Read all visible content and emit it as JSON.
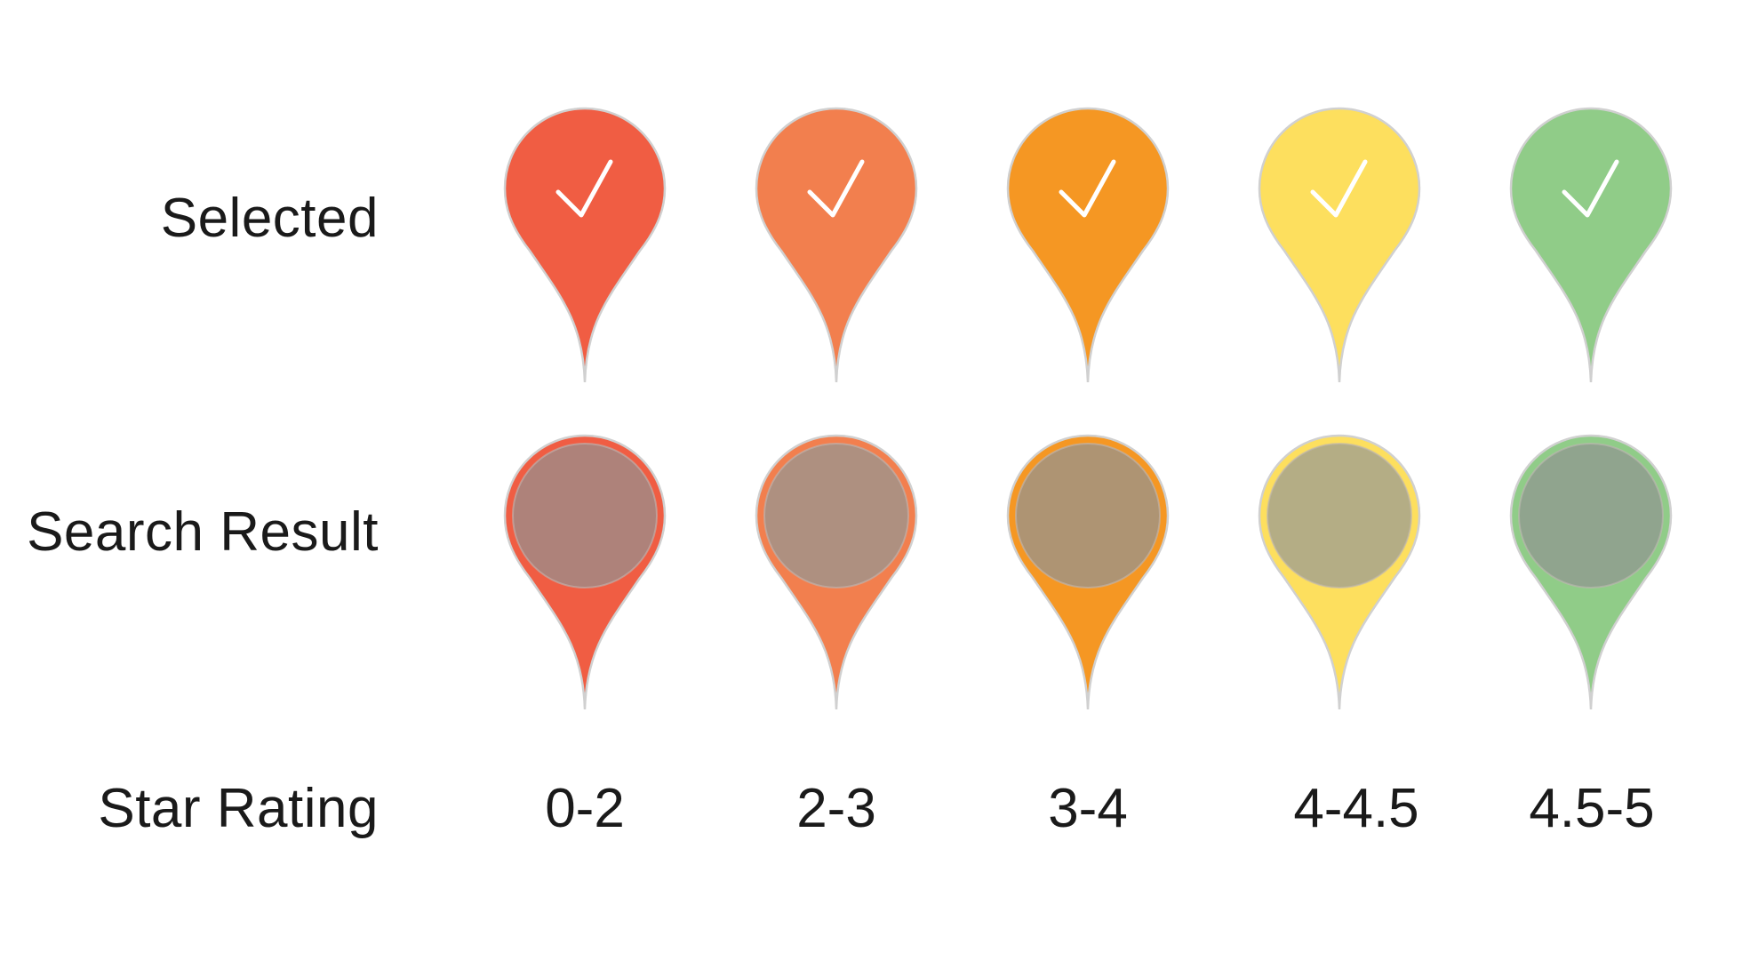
{
  "rows": {
    "selected": "Selected",
    "search_result": "Search Result",
    "star_rating": "Star Rating"
  },
  "tiers": [
    {
      "range": "0-2",
      "color": "#F05D43",
      "inner_color": "#AE827A"
    },
    {
      "range": "2-3",
      "color": "#F27F4E",
      "inner_color": "#AE9080"
    },
    {
      "range": "3-4",
      "color": "#F59723",
      "inner_color": "#AE9473"
    },
    {
      "range": "4-4.5",
      "color": "#FDDF5E",
      "inner_color": "#B4AD85"
    },
    {
      "range": "4.5-5",
      "color": "#90CC88",
      "inner_color": "#90A48E"
    }
  ],
  "pin_outline_color": "#D0D0D0",
  "check_color": "#FFFFFF",
  "icons": {
    "selected_marker": "check-icon",
    "search_marker": "filled-circle-icon"
  }
}
